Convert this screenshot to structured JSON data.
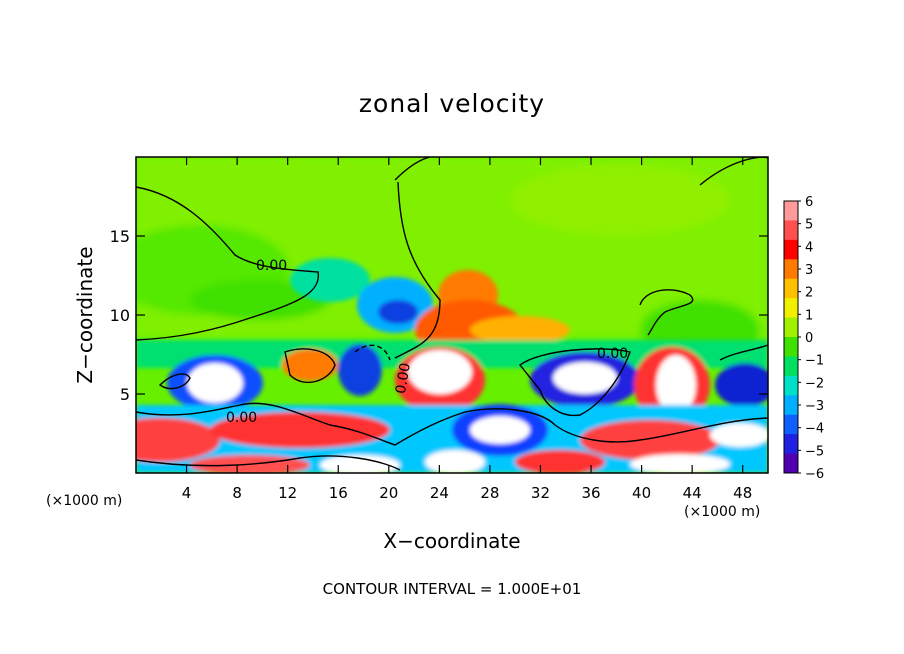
{
  "chart_data": {
    "type": "heatmap",
    "title": "zonal velocity",
    "xlabel": "X−coordinate",
    "ylabel": "Z−coordinate",
    "x_unit_left": "(×1000 m)",
    "x_unit_right": "(×1000 m)",
    "footer": "CONTOUR INTERVAL = 1.000E+01",
    "xlim": [
      0,
      50
    ],
    "ylim": [
      0,
      20
    ],
    "x_ticks": [
      4,
      8,
      12,
      16,
      20,
      24,
      28,
      32,
      36,
      40,
      44,
      48
    ],
    "y_ticks": [
      5,
      10,
      15
    ],
    "colorbar": {
      "levels": [
        6,
        5,
        4,
        3,
        2,
        1,
        0,
        -1,
        -2,
        -3,
        -4,
        -5,
        -6
      ],
      "colors": [
        "#ff9a9a",
        "#ff5050",
        "#ff0000",
        "#ff7a00",
        "#ffc000",
        "#f0f000",
        "#a0f000",
        "#40e000",
        "#00e060",
        "#00e0c8",
        "#00b0ff",
        "#1060ff",
        "#2020e0",
        "#5000b0"
      ]
    },
    "contour_labels": [
      "0.00",
      "0.00",
      "0.00",
      "0.00"
    ]
  },
  "colors": {
    "background_field": "#66ff00",
    "axis": "#000000"
  }
}
